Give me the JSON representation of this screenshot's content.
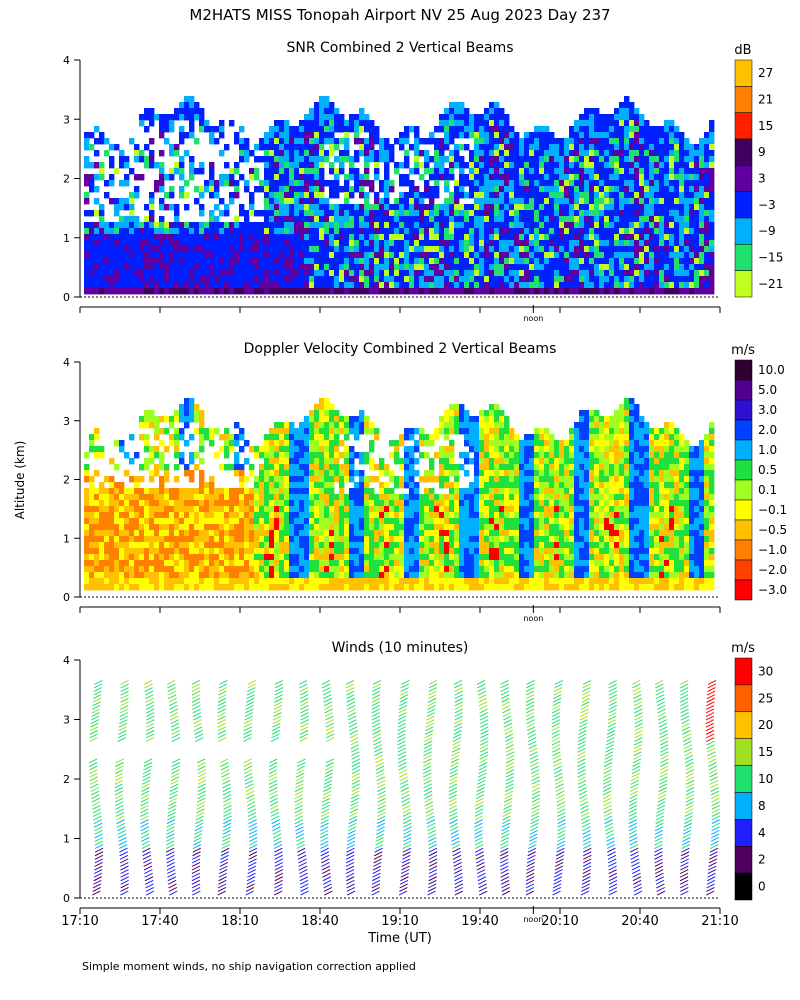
{
  "title": "M2HATS MISS Tonopah Airport NV  25 Aug 2023 Day 237",
  "ylabel": "Altitude (km)",
  "xlabel": "Time (UT)",
  "footnote": "Simple moment winds, no ship navigation correction applied",
  "noon_label": "noon",
  "time_ticks": [
    "17:10",
    "17:40",
    "18:10",
    "18:40",
    "19:10",
    "19:40",
    "20:10",
    "20:40",
    "21:10"
  ],
  "panels": [
    {
      "title": "SNR Combined 2 Vertical Beams",
      "unit": "dB",
      "colorbar_labels": [
        "27",
        "21",
        "15",
        "9",
        "3",
        "−3",
        "−9",
        "−15",
        "−21"
      ],
      "colorbar_colors": [
        "#ffc000",
        "#ff8000",
        "#ff2000",
        "#400060",
        "#6000a0",
        "#0020ff",
        "#00b0ff",
        "#20e070",
        "#c0ff20"
      ]
    },
    {
      "title": "Doppler Velocity Combined 2 Vertical Beams",
      "unit": "m/s",
      "colorbar_labels": [
        "10.0",
        "5.0",
        "3.0",
        "2.0",
        "1.0",
        "0.5",
        "0.1",
        "−0.1",
        "−0.5",
        "−1.0",
        "−2.0",
        "−3.0"
      ],
      "colorbar_colors": [
        "#300030",
        "#500090",
        "#3010d0",
        "#0040ff",
        "#00b0ff",
        "#20e040",
        "#a0ff20",
        "#ffff00",
        "#ffc000",
        "#ff8000",
        "#ff4000",
        "#ff0000"
      ]
    },
    {
      "title": "Winds (10 minutes)",
      "unit": "m/s",
      "colorbar_labels": [
        "30",
        "25",
        "20",
        "15",
        "10",
        "8",
        "4",
        "2",
        "0"
      ],
      "colorbar_colors": [
        "#ff0000",
        "#ff6000",
        "#ffc000",
        "#a0e020",
        "#20e070",
        "#00b0ff",
        "#2020ff",
        "#500060",
        "#000000"
      ]
    }
  ],
  "chart_data": [
    {
      "type": "heatmap",
      "title": "SNR Combined 2 Vertical Beams",
      "unit": "dB",
      "x_range": [
        "17:10",
        "21:10"
      ],
      "y_range_km": [
        0,
        4
      ],
      "ylabel": "Altitude (km)",
      "colorbar_ticks": [
        27,
        21,
        15,
        9,
        3,
        -3,
        -9,
        -15,
        -21
      ],
      "description": "Signal echo up to about 3.2 km altitude; weak (green/cyan) near top, stronger (blue/purple) in lower layers"
    },
    {
      "type": "heatmap",
      "title": "Doppler Velocity Combined 2 Vertical Beams",
      "unit": "m/s",
      "x_range": [
        "17:10",
        "21:10"
      ],
      "y_range_km": [
        0,
        4
      ],
      "ylabel": "Altitude (km)",
      "colorbar_ticks": [
        10.0,
        5.0,
        3.0,
        2.0,
        1.0,
        0.5,
        0.1,
        -0.1,
        -0.5,
        -1.0,
        -2.0,
        -3.0
      ]
    },
    {
      "type": "scatter",
      "title": "Winds (10 minutes)",
      "unit": "m/s",
      "x_range": [
        "17:10",
        "21:10"
      ],
      "y_range_km": [
        0,
        4
      ],
      "xlabel": "Time (UT)",
      "ylabel": "Altitude (km)",
      "colorbar_ticks": [
        30,
        25,
        20,
        15,
        10,
        8,
        4,
        2,
        0
      ],
      "profile_count": 25
    }
  ]
}
